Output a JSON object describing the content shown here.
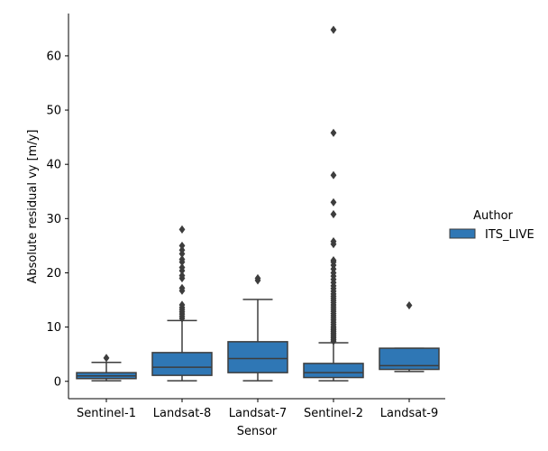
{
  "chart_data": {
    "type": "box",
    "xlabel": "Sensor",
    "ylabel": "Absolute residual vy [m/y]",
    "ylim": [
      -3.2,
      67.8
    ],
    "yticks": [
      0,
      10,
      20,
      30,
      40,
      50,
      60
    ],
    "categories": [
      "Sentinel-1",
      "Landsat-8",
      "Landsat-7",
      "Sentinel-2",
      "Landsat-9"
    ],
    "legend": {
      "title": "Author",
      "position": "right",
      "entries": [
        {
          "name": "ITS_LIVE"
        }
      ]
    },
    "series_color": "#2f77b5",
    "line_color": "#3d3d3d",
    "boxes": [
      {
        "category": "Sentinel-1",
        "min": 0.1,
        "q1": 0.5,
        "median": 1.0,
        "q3": 1.6,
        "max": 3.5,
        "outliers": [
          4.3
        ]
      },
      {
        "category": "Landsat-8",
        "min": 0.1,
        "q1": 1.1,
        "median": 2.6,
        "q3": 5.3,
        "max": 11.2,
        "outliers": [
          11.6,
          12.0,
          12.4,
          12.8,
          13.2,
          13.6,
          14.1,
          16.7,
          17.2,
          19.0,
          19.5,
          20.4,
          21.0,
          22.0,
          22.5,
          23.5,
          24.2,
          25.0,
          28.0
        ]
      },
      {
        "category": "Landsat-7",
        "min": 0.1,
        "q1": 1.6,
        "median": 4.2,
        "q3": 7.3,
        "max": 15.1,
        "outliers": [
          18.6,
          19.0
        ]
      },
      {
        "category": "Sentinel-2",
        "min": 0.1,
        "q1": 0.7,
        "median": 1.6,
        "q3": 3.3,
        "max": 7.1,
        "outliers": [
          7.4,
          7.7,
          8.0,
          8.3,
          8.6,
          8.9,
          9.2,
          9.5,
          9.8,
          10.1,
          10.5,
          10.9,
          11.3,
          11.7,
          12.1,
          12.5,
          12.9,
          13.3,
          13.7,
          14.1,
          14.5,
          14.9,
          15.3,
          15.7,
          16.1,
          16.6,
          17.1,
          17.6,
          18.2,
          18.8,
          19.4,
          20.0,
          20.7,
          21.4,
          22.0,
          22.3,
          25.3,
          25.8,
          30.8,
          33.0,
          38.0,
          45.8,
          64.8
        ]
      },
      {
        "category": "Landsat-9",
        "min": 1.8,
        "q1": 2.2,
        "median": 2.9,
        "q3": 6.1,
        "max": 6.1,
        "outliers": [
          14.0
        ]
      }
    ]
  }
}
